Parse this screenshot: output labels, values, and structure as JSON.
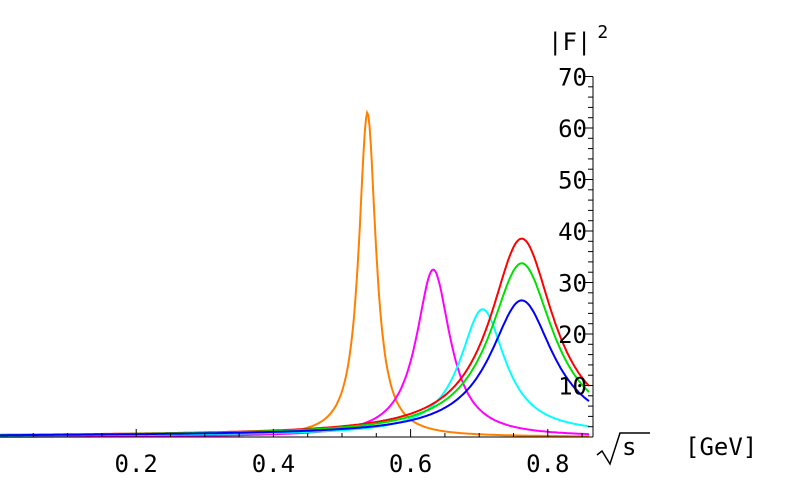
{
  "chart_data": {
    "type": "line",
    "title": "",
    "xlabel": "[GeV]",
    "xlabel_sqrt": "s",
    "ylabel": "|F|",
    "ylabel_exp": "2",
    "xlim": [
      0.0,
      1.0
    ],
    "ylim": [
      0,
      70
    ],
    "x_ticks": [
      0.2,
      0.4,
      0.6,
      0.8
    ],
    "x_tick_labels": [
      "0.2",
      "0.4",
      "0.6",
      "0.8"
    ],
    "y_ticks": [
      10,
      20,
      30,
      40,
      50,
      60,
      70
    ],
    "y_tick_labels": [
      "10",
      "20",
      "30",
      "40",
      "50",
      "60",
      "70"
    ],
    "grid": false,
    "legend": "none",
    "series": [
      {
        "color": "#ff8000",
        "peak_x": 0.537,
        "peak_y": 63.0,
        "half_width": 0.015
      },
      {
        "color": "#ff00ff",
        "peak_x": 0.633,
        "peak_y": 32.5,
        "half_width": 0.03
      },
      {
        "color": "#00ffff",
        "peak_x": 0.705,
        "peak_y": 24.3,
        "half_width": 0.04
      },
      {
        "color": "#ff0000",
        "peak_x": 0.762,
        "peak_y": 38.0,
        "half_width": 0.056
      },
      {
        "color": "#00e000",
        "peak_x": 0.762,
        "peak_y": 33.2,
        "half_width": 0.056
      },
      {
        "color": "#0000ff",
        "peak_x": 0.762,
        "peak_y": 26.0,
        "half_width": 0.056
      }
    ]
  }
}
